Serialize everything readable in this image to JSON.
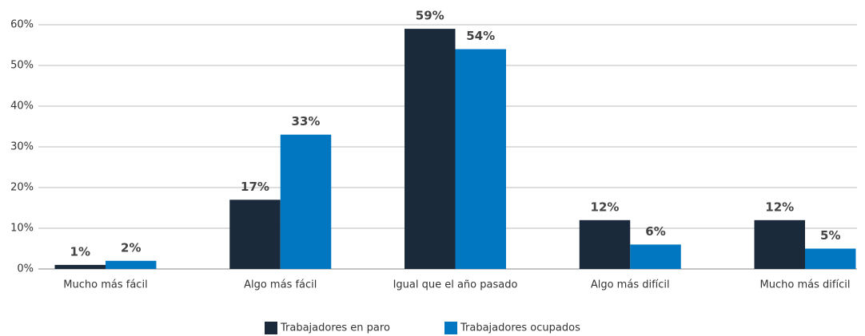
{
  "chart_data": {
    "type": "bar",
    "categories": [
      "Mucho más fácil",
      "Algo más fácil",
      "Igual que el año pasado",
      "Algo más difícil",
      "Mucho más difícil"
    ],
    "series": [
      {
        "name": "Trabajadores en paro",
        "color": "#1b2a3b",
        "values": [
          1,
          17,
          59,
          12,
          12
        ],
        "value_labels": [
          "1%",
          "17%",
          "59%",
          "12%",
          "12%"
        ]
      },
      {
        "name": "Trabajadores ocupados",
        "color": "#0077c0",
        "values": [
          2,
          33,
          54,
          6,
          5
        ],
        "value_labels": [
          "2%",
          "33%",
          "54%",
          "6%",
          "5%"
        ]
      }
    ],
    "ylim": [
      0,
      60
    ],
    "yticks": [
      {
        "value": 0,
        "label": "0%"
      },
      {
        "value": 10,
        "label": "10%"
      },
      {
        "value": 20,
        "label": "20%"
      },
      {
        "value": 30,
        "label": "30%"
      },
      {
        "value": 40,
        "label": "40%"
      },
      {
        "value": 50,
        "label": "50%"
      },
      {
        "value": 60,
        "label": "60%"
      }
    ],
    "grid": true,
    "legend": "bottom"
  }
}
